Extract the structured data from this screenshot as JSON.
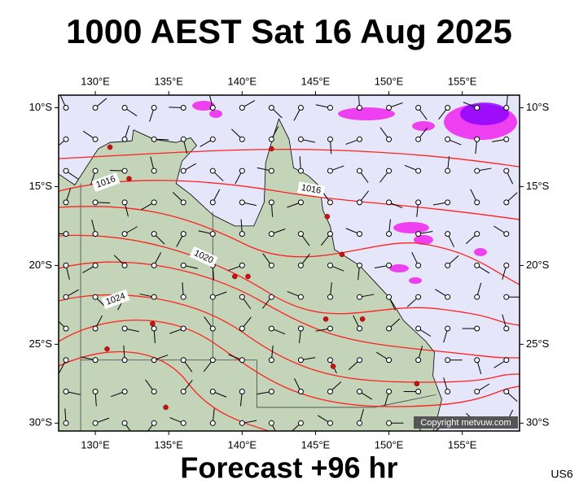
{
  "map": {
    "title": "1000 AEST Sat 16 Aug 2025",
    "subtitle": "Forecast +96 hr",
    "code": "US6",
    "copyright": "Copyright metvuw.com",
    "xlim": [
      127.5,
      158.9
    ],
    "ylim": [
      -30.5,
      -9.2
    ],
    "xticks": [
      {
        "value": 130,
        "label": "130°E"
      },
      {
        "value": 135,
        "label": "135°E"
      },
      {
        "value": 140,
        "label": "140°E"
      },
      {
        "value": 145,
        "label": "145°E"
      },
      {
        "value": 150,
        "label": "150°E"
      },
      {
        "value": 155,
        "label": "155°E"
      }
    ],
    "yticks": [
      {
        "value": -10,
        "label": "10°S"
      },
      {
        "value": -15,
        "label": "15°S"
      },
      {
        "value": -20,
        "label": "20°S"
      },
      {
        "value": -25,
        "label": "25°S"
      },
      {
        "value": -30,
        "label": "30°S"
      }
    ],
    "isobar_labels": [
      1016,
      1016,
      1020,
      1024
    ]
  }
}
